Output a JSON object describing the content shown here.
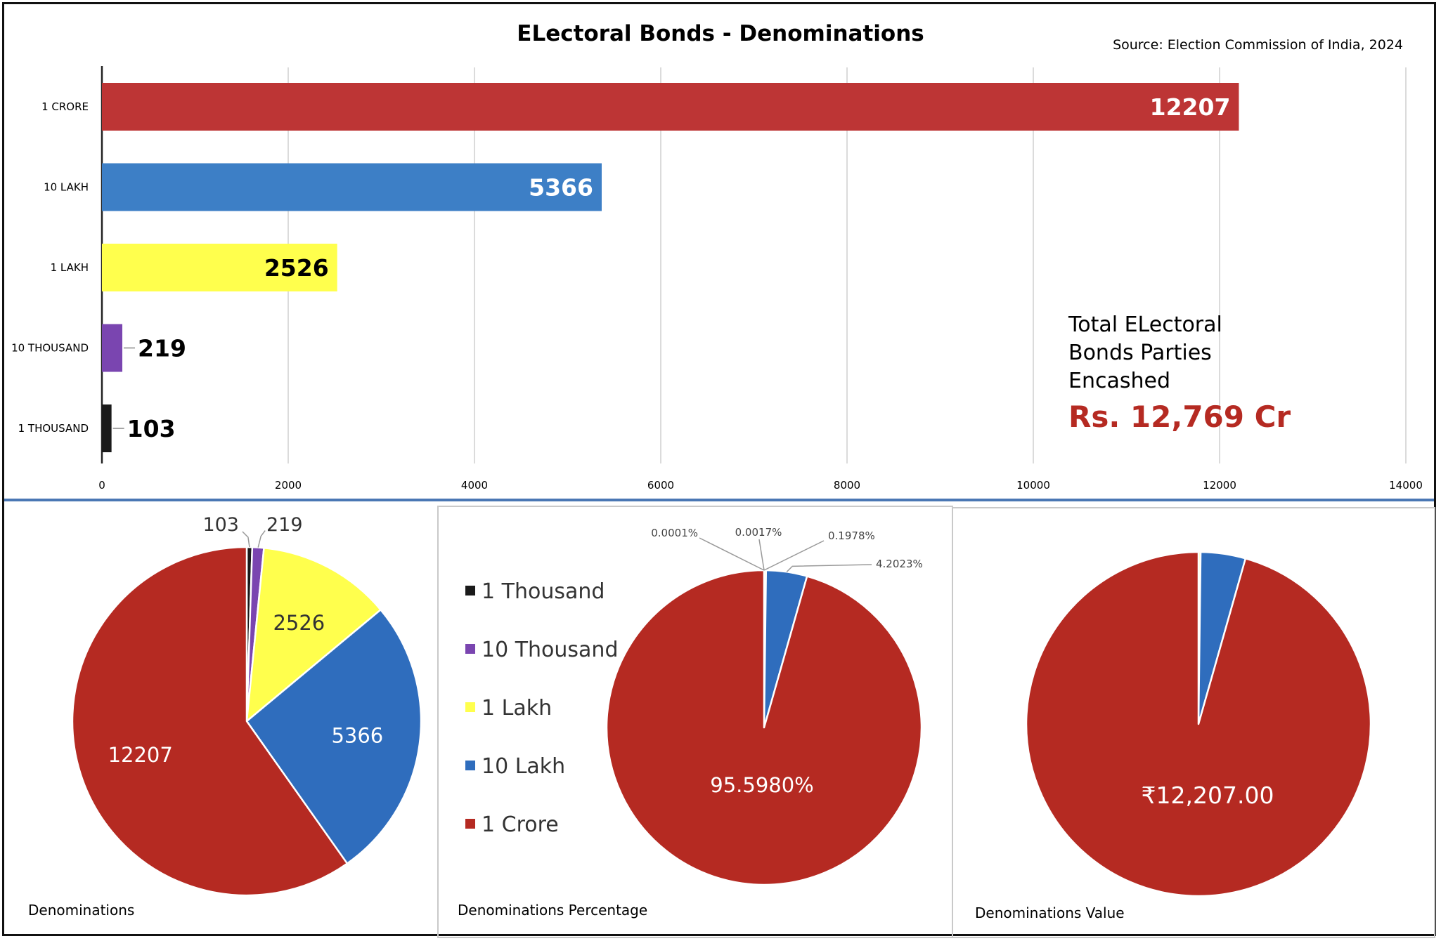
{
  "colors": {
    "1 Thousand": "#1a1a1a",
    "10 Thousand": "#7a45b0",
    "1 Lakh": "#ffff4d",
    "10 Lakh": "#2f6dbd",
    "1 Crore": "#b52a22",
    "bar_1_crore": "#bd3535",
    "bar_10_lakh": "#3d7fc6",
    "total_value": "#b52a22"
  },
  "header": {
    "title": "ELectoral Bonds - Denominations",
    "source": "Source: Election Commission of India, 2024"
  },
  "total_box": {
    "line1": "Total ELectoral",
    "line2": "Bonds Parties",
    "line3": "Encashed",
    "value": "Rs. 12,769 Cr"
  },
  "legend": [
    "1 Thousand",
    "10 Thousand",
    "1 Lakh",
    "10 Lakh",
    "1 Crore"
  ],
  "captions": {
    "pie1": "Denominations",
    "pie2": "Denominations Percentage",
    "pie3": "Denominations Value"
  },
  "chart_data": [
    {
      "type": "bar",
      "orientation": "horizontal",
      "title": "ELectoral Bonds - Denominations",
      "categories": [
        "1 CRORE",
        "10 LAKH",
        "1 LAKH",
        "10 THOUSAND",
        "1 THOUSAND"
      ],
      "values": [
        12207,
        5366,
        2526,
        219,
        103
      ],
      "data_labels": [
        "12207",
        "5366",
        "2526",
        "219",
        "103"
      ],
      "xlim": [
        0,
        14000
      ],
      "xticks": [
        0,
        2000,
        4000,
        6000,
        8000,
        10000,
        12000,
        14000
      ],
      "grid": "vertical"
    },
    {
      "type": "pie",
      "title": "Denominations",
      "labels": [
        "1 Thousand",
        "10 Thousand",
        "1 Lakh",
        "10 Lakh",
        "1 Crore"
      ],
      "values": [
        103,
        219,
        2526,
        5366,
        12207
      ],
      "data_labels": [
        "103",
        "219",
        "2526",
        "5366",
        "12207"
      ]
    },
    {
      "type": "pie",
      "title": "Denominations Percentage",
      "labels": [
        "1 Thousand",
        "10 Thousand",
        "1 Lakh",
        "10 Lakh",
        "1 Crore"
      ],
      "values": [
        0.0001,
        0.0017,
        0.1978,
        4.2023,
        95.598
      ],
      "data_labels": [
        "0.0001%",
        "0.0017%",
        "0.1978%",
        "4.2023%",
        "95.5980%"
      ]
    },
    {
      "type": "pie",
      "title": "Denominations Value",
      "labels": [
        "1 Thousand",
        "10 Thousand",
        "1 Lakh",
        "10 Lakh",
        "1 Crore"
      ],
      "values": [
        0.0103,
        0.219,
        25.26,
        536.6,
        12207
      ],
      "data_labels": [
        "₹12,207.00"
      ]
    }
  ]
}
